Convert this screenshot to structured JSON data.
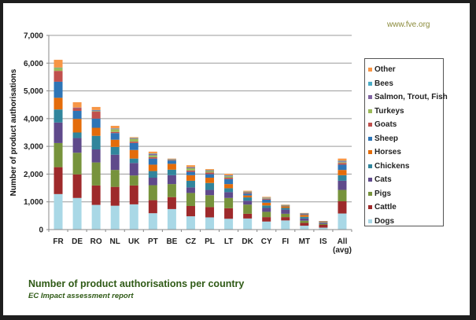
{
  "source_label": "www.fve.org",
  "caption": {
    "title": "Number of product authorisations per country",
    "subtitle": "EC Impact assessment report"
  },
  "chart_data": {
    "type": "bar",
    "stacked": true,
    "title": "Number of product authorisations per country",
    "subtitle": "EC Impact assessment report",
    "xlabel": "",
    "ylabel": "Number of product authorisations",
    "ylim": [
      0,
      7000
    ],
    "yticks": [
      0,
      1000,
      2000,
      3000,
      4000,
      5000,
      6000,
      7000
    ],
    "ytick_labels": [
      "0",
      "1,000",
      "2,000",
      "3,000",
      "4,000",
      "5,000",
      "6,000",
      "7,000"
    ],
    "grid": true,
    "legend_position": "right",
    "categories": [
      "FR",
      "DE",
      "RO",
      "NL",
      "UK",
      "PT",
      "BE",
      "CZ",
      "PL",
      "LT",
      "DK",
      "CY",
      "FI",
      "MT",
      "IS",
      "All (avg)"
    ],
    "category_labels": [
      [
        "FR"
      ],
      [
        "DE"
      ],
      [
        "RO"
      ],
      [
        "NL"
      ],
      [
        "UK"
      ],
      [
        "PT"
      ],
      [
        "BE"
      ],
      [
        "CZ"
      ],
      [
        "PL"
      ],
      [
        "LT"
      ],
      [
        "DK"
      ],
      [
        "CY"
      ],
      [
        "FI"
      ],
      [
        "MT"
      ],
      [
        "IS"
      ],
      [
        "All",
        "(avg)"
      ]
    ],
    "series": [
      {
        "name": "Dogs",
        "color": "#a9d8e6",
        "values": [
          1280,
          1140,
          890,
          860,
          910,
          590,
          740,
          480,
          440,
          390,
          400,
          290,
          330,
          140,
          70,
          580
        ]
      },
      {
        "name": "Cattle",
        "color": "#9e2a2b",
        "values": [
          970,
          850,
          700,
          680,
          680,
          470,
          430,
          370,
          370,
          380,
          170,
          160,
          120,
          100,
          100,
          440
        ]
      },
      {
        "name": "Pigs",
        "color": "#77933c",
        "values": [
          870,
          780,
          830,
          610,
          360,
          540,
          470,
          470,
          430,
          370,
          330,
          190,
          120,
          80,
          30,
          410
        ]
      },
      {
        "name": "Cats",
        "color": "#5f4a8b",
        "values": [
          740,
          530,
          470,
          550,
          450,
          270,
          320,
          200,
          190,
          210,
          140,
          140,
          150,
          80,
          30,
          330
        ]
      },
      {
        "name": "Chickens",
        "color": "#31859c",
        "values": [
          470,
          200,
          490,
          280,
          160,
          240,
          200,
          240,
          250,
          140,
          120,
          90,
          60,
          60,
          20,
          200
        ]
      },
      {
        "name": "Horses",
        "color": "#e46c0a",
        "values": [
          420,
          490,
          290,
          260,
          310,
          230,
          210,
          200,
          190,
          150,
          70,
          100,
          60,
          70,
          20,
          190
        ]
      },
      {
        "name": "Sheep",
        "color": "#2e75b6",
        "values": [
          580,
          290,
          330,
          240,
          250,
          220,
          120,
          120,
          130,
          180,
          70,
          110,
          20,
          30,
          10,
          190
        ]
      },
      {
        "name": "Goats",
        "color": "#c0504d",
        "values": [
          390,
          100,
          250,
          40,
          50,
          50,
          20,
          50,
          60,
          50,
          30,
          30,
          10,
          10,
          10,
          60
        ]
      },
      {
        "name": "Turkeys",
        "color": "#9bbb59",
        "values": [
          110,
          0,
          20,
          100,
          100,
          70,
          10,
          80,
          50,
          50,
          20,
          20,
          10,
          10,
          5,
          30
        ]
      },
      {
        "name": "Salmon, Trout, Fish",
        "color": "#8064a2",
        "values": [
          0,
          20,
          30,
          20,
          20,
          40,
          10,
          30,
          20,
          30,
          10,
          10,
          0,
          5,
          5,
          30
        ]
      },
      {
        "name": "Bees",
        "color": "#4bacc6",
        "values": [
          10,
          0,
          10,
          10,
          10,
          20,
          10,
          10,
          10,
          10,
          10,
          10,
          10,
          5,
          5,
          20
        ]
      },
      {
        "name": "Other",
        "color": "#f79646",
        "values": [
          280,
          190,
          110,
          90,
          30,
          70,
          20,
          70,
          40,
          50,
          30,
          30,
          10,
          10,
          5,
          80
        ]
      }
    ]
  }
}
